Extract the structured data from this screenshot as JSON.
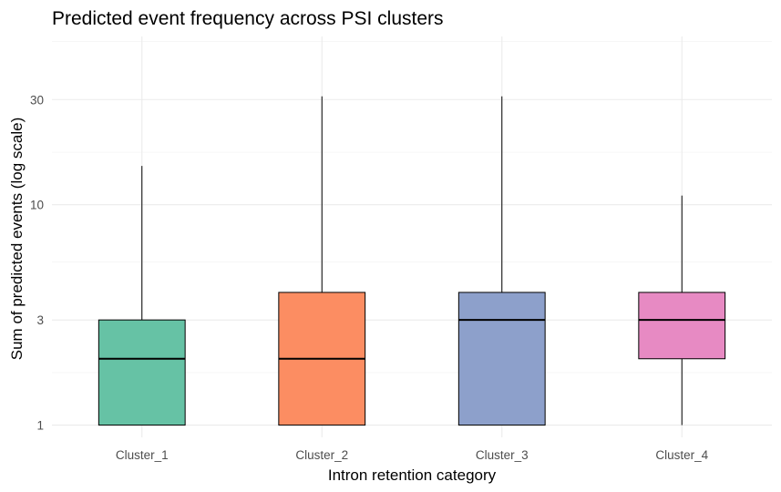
{
  "chart_data": {
    "type": "boxplot",
    "title": "Predicted event frequency across PSI clusters",
    "xlabel": "Intron retention category",
    "ylabel": "Sum of predicted events (log scale)",
    "y_scale": "log10",
    "ylim": [
      0.88,
      58
    ],
    "y_ticks": [
      1,
      3,
      10,
      30
    ],
    "y_tick_labels": [
      "1",
      "3",
      "10",
      "30"
    ],
    "y_minor_gridlines": [
      1.73,
      5.5,
      17.3,
      55
    ],
    "grid": true,
    "legend": "none",
    "categories": [
      "Cluster_1",
      "Cluster_2",
      "Cluster_3",
      "Cluster_4"
    ],
    "boxes": [
      {
        "category": "Cluster_1",
        "min": 1,
        "q1": 1,
        "median": 2,
        "q3": 3,
        "max": 15,
        "color": "#66c2a5"
      },
      {
        "category": "Cluster_2",
        "min": 1,
        "q1": 1,
        "median": 2,
        "q3": 4,
        "max": 31,
        "color": "#fc8d62"
      },
      {
        "category": "Cluster_3",
        "min": 1,
        "q1": 1,
        "median": 3,
        "q3": 4,
        "max": 31,
        "color": "#8da0cb"
      },
      {
        "category": "Cluster_4",
        "min": 1,
        "q1": 2,
        "median": 3,
        "q3": 4,
        "max": 11,
        "color": "#e78ac3"
      }
    ]
  }
}
